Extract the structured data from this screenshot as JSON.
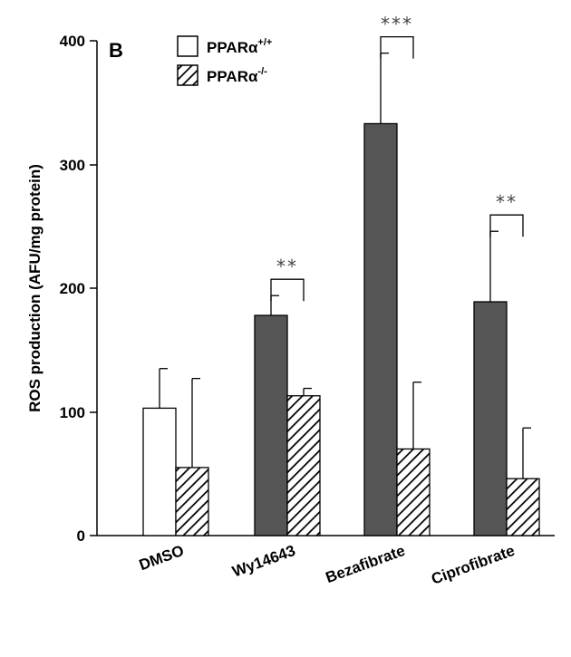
{
  "chart_data": {
    "type": "bar",
    "panel_label": "B",
    "ylabel": "ROS production (AFU/mg protein)",
    "xlabel": "",
    "ylim": [
      0,
      400
    ],
    "yticks": [
      "0",
      "100",
      "200",
      "300",
      "400"
    ],
    "categories": [
      "DMSO",
      "Wy14643",
      "Bezafibrate",
      "Ciprofibrate"
    ],
    "series": [
      {
        "name": "PPARα+/+",
        "base": "PPARα",
        "sup": "+/+",
        "values": [
          103,
          178,
          333,
          189
        ],
        "errors": [
          32,
          16,
          57,
          57
        ],
        "fills": [
          "#ffffff",
          "#555555",
          "#555555",
          "#555555"
        ]
      },
      {
        "name": "PPARα-/-",
        "base": "PPARα",
        "sup": "-/-",
        "values": [
          55,
          113,
          70,
          46
        ],
        "errors": [
          72,
          6,
          54,
          41
        ],
        "fill": "hatched"
      }
    ],
    "significance": [
      {
        "category_index": 1,
        "label": "**"
      },
      {
        "category_index": 2,
        "label": "***"
      },
      {
        "category_index": 3,
        "label": "**"
      }
    ],
    "legend_position": "top-left",
    "grid": false
  }
}
